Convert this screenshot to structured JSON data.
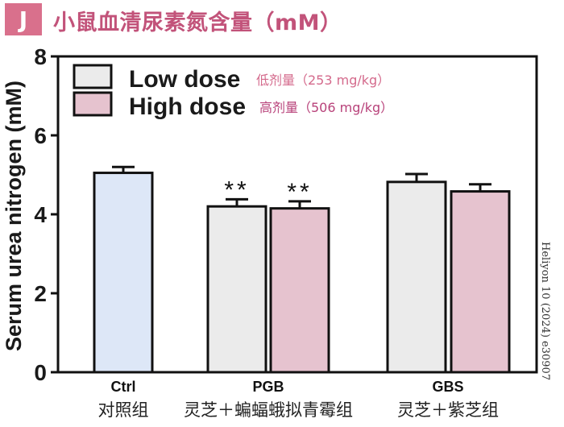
{
  "header": {
    "panel_letter": "J",
    "title": "小鼠血清尿素氮含量（mM）",
    "badge_color": "#d9708c",
    "title_color": "#c2537a"
  },
  "watermark": "Heliyon 10 (2024) e30907",
  "chart_data": {
    "type": "bar",
    "ylabel": "Serum urea nitrogen (mM)",
    "ylim": [
      0,
      8
    ],
    "yticks": [
      "0",
      "2",
      "4",
      "6",
      "8"
    ],
    "grid": false,
    "legend_placement": "top-left",
    "legend": [
      {
        "name": "Low dose",
        "annotation": "低剂量（253 mg/kg）",
        "color": "#ebebeb",
        "annotation_color": "#d46a8c"
      },
      {
        "name": "High dose",
        "annotation": "高剂量（506 mg/kg）",
        "color": "#e6c3cf",
        "annotation_color": "#b8427a"
      }
    ],
    "groups": [
      {
        "label": "Ctrl",
        "sublabel": "对照组",
        "bars": [
          {
            "value": 5.05,
            "error": 0.15,
            "color": "#dde7f7",
            "significance": ""
          }
        ]
      },
      {
        "label": "PGB",
        "sublabel": "灵芝＋蝙蝠蛾拟青霉组",
        "bars": [
          {
            "value": 4.2,
            "error": 0.18,
            "color": "#ebebeb",
            "significance": "**"
          },
          {
            "value": 4.15,
            "error": 0.18,
            "color": "#e6c3cf",
            "significance": "**"
          }
        ]
      },
      {
        "label": "GBS",
        "sublabel": "灵芝＋紫芝组",
        "bars": [
          {
            "value": 4.82,
            "error": 0.2,
            "color": "#ebebeb",
            "significance": ""
          },
          {
            "value": 4.58,
            "error": 0.18,
            "color": "#e6c3cf",
            "significance": ""
          }
        ]
      }
    ]
  }
}
